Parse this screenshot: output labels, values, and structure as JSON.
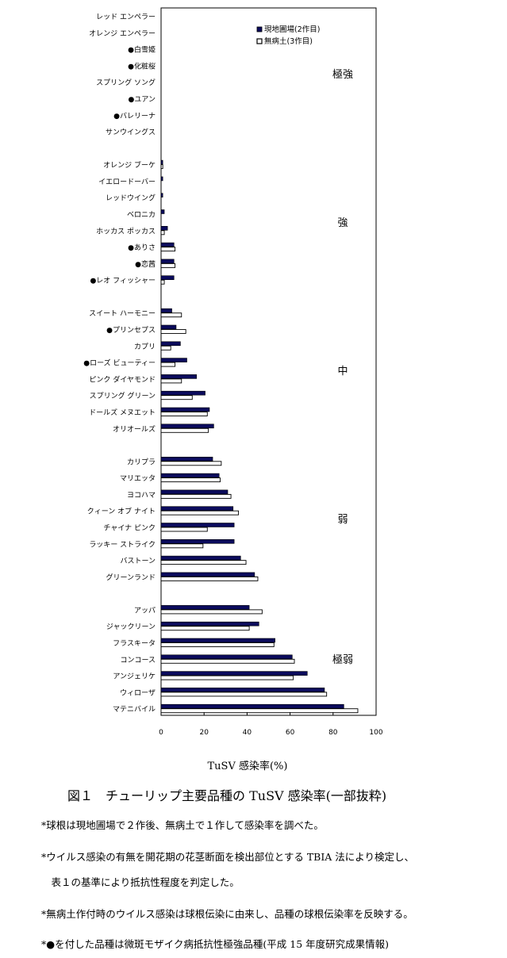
{
  "chart_data": {
    "type": "bar",
    "orientation": "horizontal",
    "xlabel": "TuSV 感染率(%)",
    "xlim": [
      0,
      100
    ],
    "xticks": [
      0,
      20,
      40,
      60,
      80,
      100
    ],
    "grid": false,
    "legend_position": "top-right",
    "series": [
      {
        "name": "現地圃場(2作目)",
        "color": "#0b0b5c",
        "fill": "solid"
      },
      {
        "name": "無病土(3作目)",
        "color": "#ffffff",
        "fill": "hollow"
      }
    ],
    "groups": [
      {
        "label": "極強",
        "items": [
          {
            "name": "レッド エンペラー",
            "marked": false,
            "values": [
              0,
              0
            ]
          },
          {
            "name": "オレンジ エンペラー",
            "marked": false,
            "values": [
              0,
              0
            ]
          },
          {
            "name": "白雪姫",
            "marked": true,
            "values": [
              0,
              0
            ]
          },
          {
            "name": "化粧桜",
            "marked": true,
            "values": [
              0,
              0
            ]
          },
          {
            "name": "スプリング ソング",
            "marked": false,
            "values": [
              0,
              0
            ]
          },
          {
            "name": "ユアン",
            "marked": true,
            "values": [
              0,
              0
            ]
          },
          {
            "name": "バレリーナ",
            "marked": true,
            "values": [
              0,
              0
            ]
          },
          {
            "name": "サンウイングス",
            "marked": false,
            "values": [
              0,
              0
            ]
          }
        ]
      },
      {
        "label": "強",
        "items": [
          {
            "name": "オレンジ ブーケ",
            "marked": false,
            "values": [
              0.8,
              0.8
            ]
          },
          {
            "name": "イエロードーバー",
            "marked": false,
            "values": [
              0.8,
              0
            ]
          },
          {
            "name": "レッドウイング",
            "marked": false,
            "values": [
              0.8,
              0
            ]
          },
          {
            "name": "ベロニカ",
            "marked": false,
            "values": [
              1.5,
              0
            ]
          },
          {
            "name": "ホッカス ポッカス",
            "marked": false,
            "values": [
              3,
              1.5
            ]
          },
          {
            "name": "ありさ",
            "marked": true,
            "values": [
              6,
              6.5
            ]
          },
          {
            "name": "恋茜",
            "marked": true,
            "values": [
              6,
              6.5
            ]
          },
          {
            "name": "レオ フィッシャー",
            "marked": true,
            "values": [
              6,
              1.5
            ]
          }
        ]
      },
      {
        "label": "中",
        "items": [
          {
            "name": "スイート ハーモニー",
            "marked": false,
            "values": [
              5,
              9.5
            ]
          },
          {
            "name": "プリンセプス",
            "marked": true,
            "values": [
              7,
              11.5
            ]
          },
          {
            "name": "カプリ",
            "marked": false,
            "values": [
              9,
              4.5
            ]
          },
          {
            "name": "ローズ ビューティー",
            "marked": true,
            "values": [
              12,
              6.5
            ]
          },
          {
            "name": "ピンク ダイヤモンド",
            "marked": false,
            "values": [
              16.5,
              9.5
            ]
          },
          {
            "name": "スプリング グリーン",
            "marked": false,
            "values": [
              20.5,
              14.5
            ]
          },
          {
            "name": "ドールズ メヌエット",
            "marked": false,
            "values": [
              22.5,
              21.5
            ]
          },
          {
            "name": "オリオールズ",
            "marked": false,
            "values": [
              24.5,
              22
            ]
          }
        ]
      },
      {
        "label": "弱",
        "items": [
          {
            "name": "カリプラ",
            "marked": false,
            "values": [
              24,
              28
            ]
          },
          {
            "name": "マリエッタ",
            "marked": false,
            "values": [
              27,
              27.5
            ]
          },
          {
            "name": "ヨコハマ",
            "marked": false,
            "values": [
              31,
              32.5
            ]
          },
          {
            "name": "クィーン オブ ナイト",
            "marked": false,
            "values": [
              33.5,
              36
            ]
          },
          {
            "name": "チャイナ ピンク",
            "marked": false,
            "values": [
              34,
              21.5
            ]
          },
          {
            "name": "ラッキー ストライク",
            "marked": false,
            "values": [
              34,
              19.5
            ]
          },
          {
            "name": "バストーン",
            "marked": false,
            "values": [
              37,
              39.5
            ]
          },
          {
            "name": "グリーンランド",
            "marked": false,
            "values": [
              43.5,
              45
            ]
          }
        ]
      },
      {
        "label": "極弱",
        "items": [
          {
            "name": "アッパ",
            "marked": false,
            "values": [
              41,
              47
            ]
          },
          {
            "name": "ジャックリーン",
            "marked": false,
            "values": [
              45.5,
              41
            ]
          },
          {
            "name": "フラスキータ",
            "marked": false,
            "values": [
              53,
              52.5
            ]
          },
          {
            "name": "コンコース",
            "marked": false,
            "values": [
              61,
              62
            ]
          },
          {
            "name": "アンジェリケ",
            "marked": false,
            "values": [
              68,
              61.5
            ]
          },
          {
            "name": "ウィローザ",
            "marked": false,
            "values": [
              76,
              77
            ]
          },
          {
            "name": "マテニバイル",
            "marked": false,
            "values": [
              85,
              91.5
            ]
          }
        ]
      }
    ]
  },
  "caption": "図１　チューリップ主要品種の TuSV 感染率(一部抜粋)",
  "notes": [
    "*球根は現地圃場で２作後、無病土で１作して感染率を調べた。",
    "*ウイルス感染の有無を開花期の花茎断面を検出部位とする TBIA 法により検定し、",
    "　表１の基準により抵抗性程度を判定した。",
    "*無病土作付時のウイルス感染は球根伝染に由来し、品種の球根伝染率を反映する。",
    "*●を付した品種は微斑モザイク病抵抗性極強品種(平成 15 年度研究成果情報)"
  ]
}
